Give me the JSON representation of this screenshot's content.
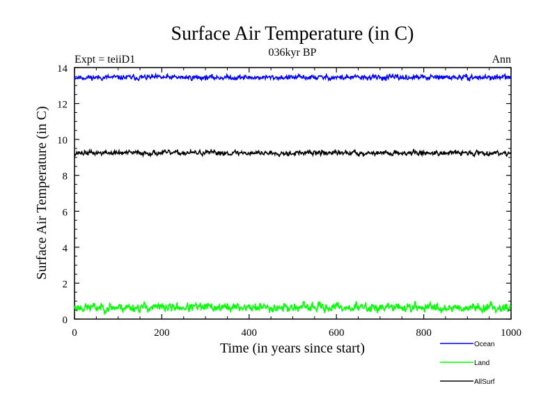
{
  "chart_data": {
    "type": "line",
    "title": "Surface Air Temperature (in C)",
    "subtitle": "036kyr BP",
    "left_label": "Expt = teiiD1",
    "right_label": "Ann",
    "xlabel": "Time (in years since start)",
    "ylabel": "Surface Air Temperature (in C)",
    "xlim": [
      0,
      1000
    ],
    "ylim": [
      0,
      14
    ],
    "x_ticks": [
      0,
      200,
      400,
      600,
      800,
      1000
    ],
    "y_ticks": [
      0,
      2,
      4,
      6,
      8,
      10,
      12,
      14
    ],
    "grid": false,
    "legend_position": "bottom-right, outside plot",
    "series": [
      {
        "name": "Ocean",
        "color": "#0000ff",
        "mean": 13.45,
        "amplitude": 0.12,
        "seed": 11
      },
      {
        "name": "Land",
        "color": "#00ff00",
        "mean": 0.65,
        "amplitude": 0.22,
        "seed": 23
      },
      {
        "name": "AllSurf",
        "color": "#000000",
        "mean": 9.25,
        "amplitude": 0.12,
        "seed": 37
      }
    ]
  }
}
